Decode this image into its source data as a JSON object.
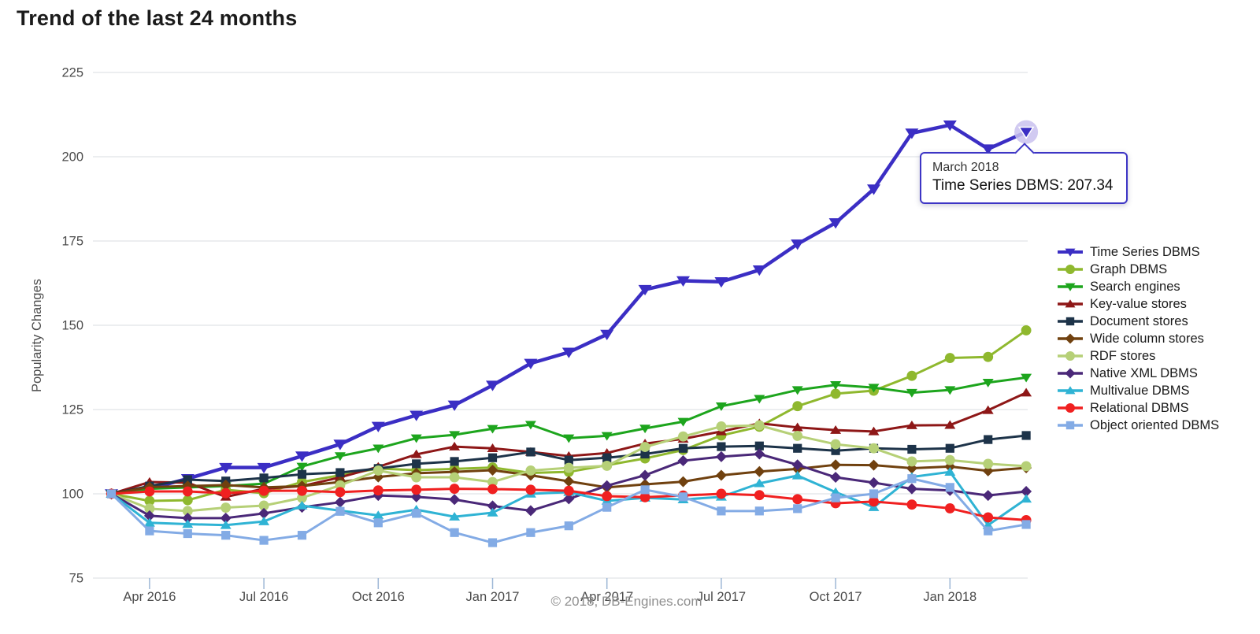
{
  "header": {
    "title": "Trend of the last 24 months"
  },
  "footer": {
    "copyright": "© 2018, DB-Engines.com"
  },
  "tooltip": {
    "date_line": "March 2018",
    "value_line": "Time Series DBMS: 207.34"
  },
  "colors": {
    "background": "#ffffff",
    "grid": "#d9dde2",
    "axis_text": "#4b4b4b",
    "tick_mark": "#9db7d6",
    "footer_text": "#8f8f8f",
    "tooltip_border": "#3d35c5",
    "halo": "#c9c1ef",
    "title_text": "#1b1b1b",
    "legend_text": "#1a1a1a"
  },
  "chart_data": {
    "type": "line",
    "title": "Trend of the last 24 months",
    "xlabel": "",
    "ylabel": "Popularity Changes",
    "ylim": [
      75,
      225
    ],
    "grid": "horizontal",
    "legend_position": "right",
    "y_ticks": [
      225,
      200,
      175,
      150,
      125,
      100,
      75
    ],
    "x_tick_labels": [
      "Apr 2016",
      "Jul 2016",
      "Oct 2016",
      "Jan 2017",
      "Apr 2017",
      "Jul 2017",
      "Oct 2017",
      "Jan 2018"
    ],
    "months": [
      "Mar 2016",
      "Apr 2016",
      "May 2016",
      "Jun 2016",
      "Jul 2016",
      "Aug 2016",
      "Sep 2016",
      "Oct 2016",
      "Nov 2016",
      "Dec 2016",
      "Jan 2017",
      "Feb 2017",
      "Mar 2017",
      "Apr 2017",
      "May 2017",
      "Jun 2017",
      "Jul 2017",
      "Aug 2017",
      "Sep 2017",
      "Oct 2017",
      "Nov 2017",
      "Dec 2017",
      "Jan 2018",
      "Feb 2018",
      "Mar 2018"
    ],
    "series": [
      {
        "name": "Time Series DBMS",
        "color": "#3b2ec4",
        "marker": "triangle-down",
        "line_width": 4.5,
        "values": [
          100,
          101.5,
          104.5,
          107.8,
          107.8,
          111.2,
          114.7,
          120,
          123.3,
          126.3,
          132.2,
          138.7,
          142,
          147.3,
          160.6,
          163.2,
          162.9,
          166.4,
          174.1,
          180.4,
          190.4,
          207,
          209.4,
          202.3,
          207.34
        ]
      },
      {
        "name": "Graph DBMS",
        "color": "#8fb82e",
        "marker": "circle",
        "line_width": 3,
        "values": [
          100,
          97.9,
          98.1,
          101.2,
          100.2,
          103.5,
          105.5,
          107.5,
          107,
          107.4,
          107.8,
          106.2,
          106.5,
          108.5,
          110.5,
          113,
          117.3,
          119.9,
          126,
          129.7,
          130.6,
          135,
          140.3,
          140.6,
          148.5
        ]
      },
      {
        "name": "Search engines",
        "color": "#1da51d",
        "marker": "triangle-down",
        "line_width": 3,
        "values": [
          100,
          101.5,
          101.9,
          102.3,
          103,
          108.1,
          111.2,
          113.5,
          116.5,
          117.5,
          119.3,
          120.5,
          116.5,
          117.2,
          119.4,
          121.4,
          126,
          128.2,
          130.8,
          132.3,
          131.5,
          130,
          130.8,
          133,
          134.5
        ]
      },
      {
        "name": "Key-value stores",
        "color": "#8e1717",
        "marker": "triangle-up",
        "line_width": 3,
        "values": [
          100,
          103.5,
          103.3,
          99.1,
          101.5,
          102.3,
          104.9,
          108,
          111.7,
          114,
          113.5,
          112.4,
          111.2,
          112.1,
          114.9,
          116.3,
          118.5,
          120.9,
          119.7,
          118.9,
          118.5,
          120.3,
          120.4,
          124.8,
          130
        ]
      },
      {
        "name": "Document stores",
        "color": "#1d3349",
        "marker": "square",
        "line_width": 3,
        "values": [
          100,
          102.3,
          104.2,
          103.8,
          104.7,
          105.8,
          106.3,
          107.5,
          108.9,
          109.6,
          110.7,
          112.4,
          110,
          110.7,
          111.8,
          113.5,
          114,
          114.2,
          113.5,
          112.8,
          113.5,
          113.2,
          113.5,
          116.1,
          117.3
        ]
      },
      {
        "name": "Wide column stores",
        "color": "#70410f",
        "marker": "diamond",
        "line_width": 3,
        "values": [
          100,
          102,
          102.3,
          102.6,
          101.9,
          102.3,
          103.5,
          105,
          106.1,
          106.5,
          107,
          105.5,
          103.7,
          101.9,
          102.8,
          103.6,
          105.5,
          106.6,
          107.4,
          108.6,
          108.5,
          107.6,
          108.1,
          106.8,
          107.7
        ]
      },
      {
        "name": "RDF stores",
        "color": "#b6d077",
        "marker": "circle",
        "line_width": 3,
        "values": [
          100,
          95.6,
          94.9,
          95.9,
          96.5,
          98.8,
          102.5,
          106.9,
          104.9,
          104.9,
          103.5,
          106.9,
          107.7,
          108.3,
          113.9,
          117,
          120,
          120.3,
          117.2,
          114.7,
          113.5,
          109.6,
          110,
          108.9,
          108.2
        ]
      },
      {
        "name": "Native XML DBMS",
        "color": "#4a2878",
        "marker": "diamond",
        "line_width": 3,
        "values": [
          100,
          93.5,
          92.8,
          92.8,
          94.2,
          96,
          97.5,
          99.5,
          99.1,
          98.3,
          96.4,
          95,
          98.5,
          102.4,
          105.5,
          109.8,
          111,
          111.8,
          108.6,
          104.9,
          103.3,
          101.5,
          101,
          99.5,
          100.7
        ]
      },
      {
        "name": "Multivalue DBMS",
        "color": "#2fb3d4",
        "marker": "triangle-up",
        "line_width": 3,
        "values": [
          100,
          91.4,
          91,
          90.7,
          91.8,
          96.5,
          95,
          93.6,
          95.3,
          93.2,
          94.4,
          100,
          100.5,
          97.9,
          98.8,
          98.3,
          99.1,
          103.1,
          105.4,
          100.5,
          96,
          105,
          106.5,
          90.7,
          98.5
        ]
      },
      {
        "name": "Relational DBMS",
        "color": "#f02020",
        "marker": "circle",
        "line_width": 3,
        "values": [
          100,
          100.7,
          100.7,
          100.2,
          100.9,
          100.9,
          100.5,
          101,
          101.2,
          101.5,
          101.4,
          101.2,
          100.9,
          99.3,
          99,
          99.5,
          100,
          99.6,
          98.4,
          97.2,
          97.7,
          96.8,
          95.7,
          93,
          92.2
        ]
      },
      {
        "name": "Object oriented DBMS",
        "color": "#83abe5",
        "marker": "square",
        "line_width": 3,
        "values": [
          100,
          89,
          88.2,
          87.7,
          86.2,
          87.7,
          94.8,
          91.4,
          94.2,
          88.5,
          85.5,
          88.5,
          90.5,
          96,
          101.2,
          99.1,
          94.9,
          94.9,
          95.6,
          98.8,
          100,
          104.5,
          101.9,
          89,
          90.9
        ]
      }
    ],
    "highlight": {
      "series": "Time Series DBMS",
      "month": "Mar 2018",
      "value": 207.34
    }
  }
}
